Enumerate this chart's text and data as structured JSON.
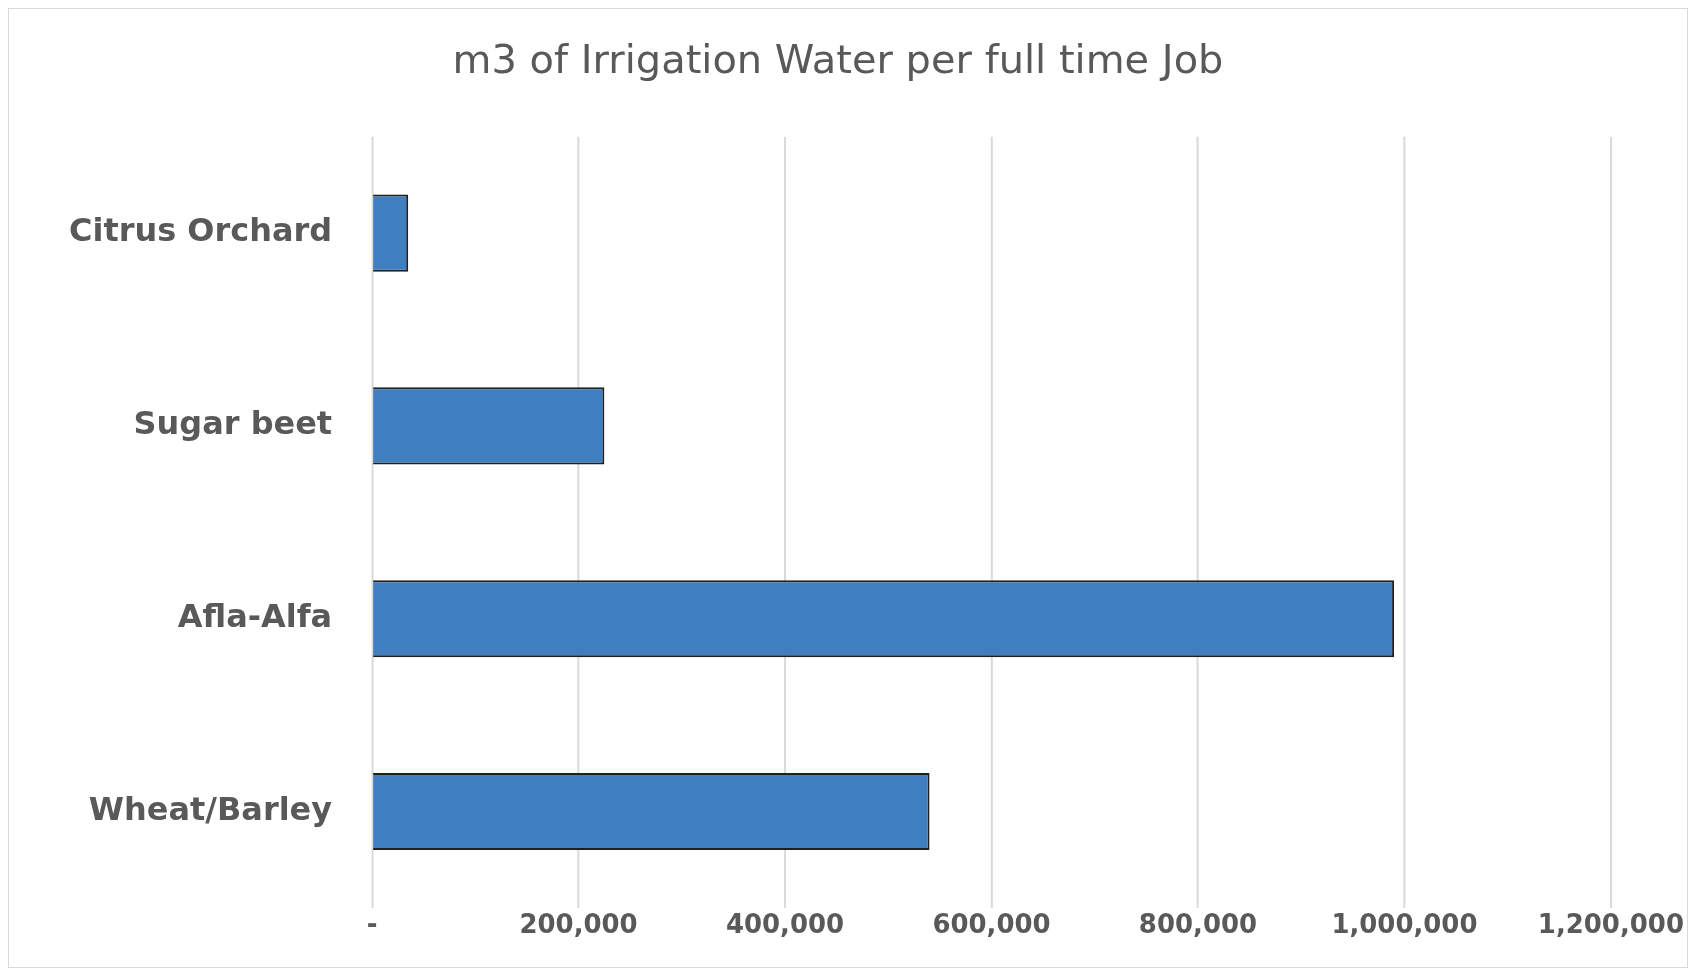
{
  "chart_data": {
    "type": "bar",
    "orientation": "horizontal",
    "title": "m3 of Irrigation Water per full time Job",
    "categories": [
      "Citrus Orchard",
      "Sugar beet",
      "Afla-Alfa",
      "Wheat/Barley"
    ],
    "values": [
      35000,
      225000,
      990000,
      540000
    ],
    "color": "#3f7fbf",
    "xlim": [
      0,
      1200000
    ],
    "xticks": [
      {
        "value": 0,
        "label": "-"
      },
      {
        "value": 200000,
        "label": "200,000"
      },
      {
        "value": 400000,
        "label": "400,000"
      },
      {
        "value": 600000,
        "label": "600,000"
      },
      {
        "value": 800000,
        "label": "800,000"
      },
      {
        "value": 1000000,
        "label": "1,000,000"
      },
      {
        "value": 1200000,
        "label": "1,200,000"
      }
    ],
    "grid": "x",
    "legend": false
  }
}
